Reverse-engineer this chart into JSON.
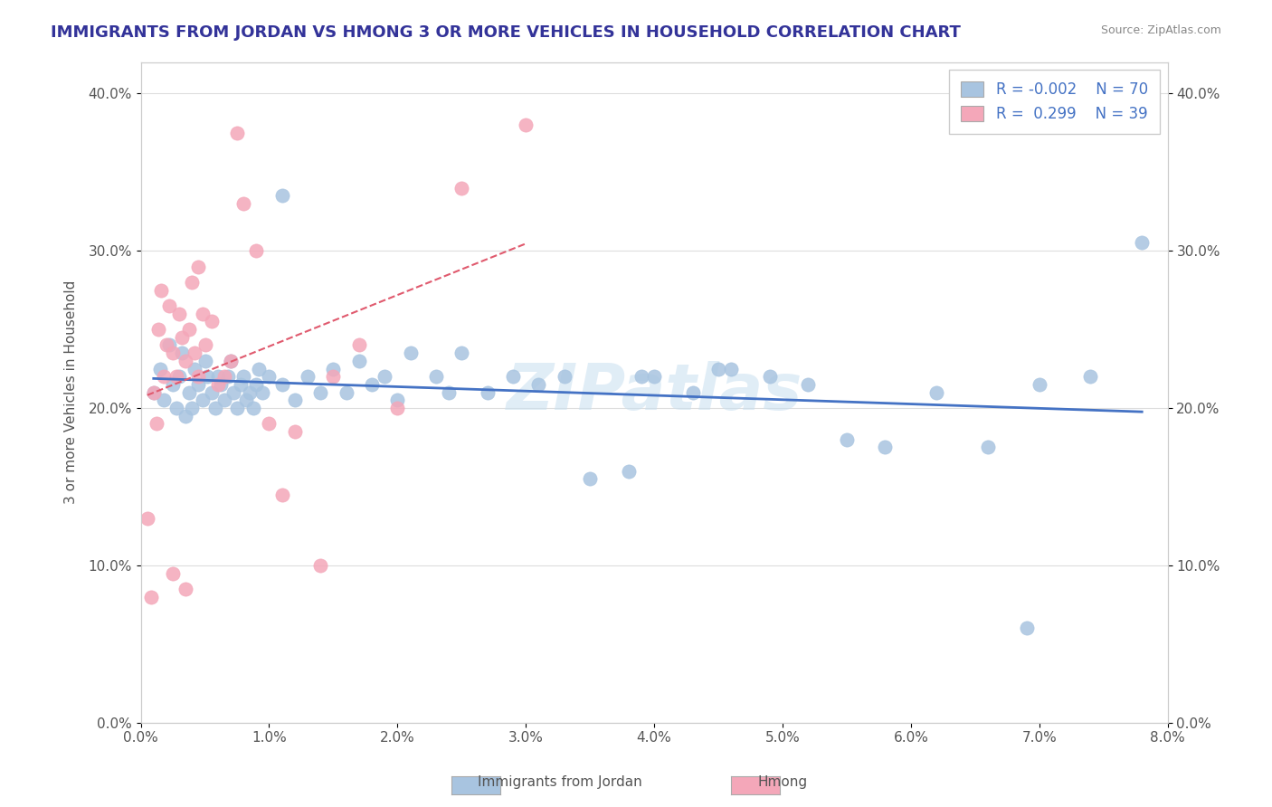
{
  "title": "IMMIGRANTS FROM JORDAN VS HMONG 3 OR MORE VEHICLES IN HOUSEHOLD CORRELATION CHART",
  "source": "Source: ZipAtlas.com",
  "ylabel": "3 or more Vehicles in Household",
  "xlim": [
    0.0,
    8.0
  ],
  "ylim": [
    0.0,
    42.0
  ],
  "jordan_color": "#a8c4e0",
  "hmong_color": "#f4a7b9",
  "jordan_line_color": "#4472c4",
  "hmong_line_color": "#e05a6e",
  "background_color": "#ffffff",
  "watermark": "ZIPatlas",
  "jordan_x": [
    0.1,
    0.15,
    0.18,
    0.22,
    0.25,
    0.28,
    0.3,
    0.32,
    0.35,
    0.38,
    0.4,
    0.42,
    0.45,
    0.48,
    0.5,
    0.52,
    0.55,
    0.58,
    0.6,
    0.62,
    0.65,
    0.68,
    0.7,
    0.72,
    0.75,
    0.78,
    0.8,
    0.82,
    0.85,
    0.88,
    0.9,
    0.92,
    0.95,
    1.0,
    1.1,
    1.2,
    1.3,
    1.4,
    1.5,
    1.6,
    1.7,
    1.8,
    1.9,
    2.0,
    2.1,
    2.3,
    2.5,
    2.7,
    2.9,
    3.1,
    3.3,
    3.5,
    3.8,
    4.0,
    4.3,
    4.6,
    4.9,
    5.2,
    5.5,
    5.8,
    6.2,
    6.6,
    7.0,
    7.4,
    7.8,
    6.9,
    4.5,
    3.9,
    2.4,
    1.1
  ],
  "jordan_y": [
    21.0,
    22.5,
    20.5,
    24.0,
    21.5,
    20.0,
    22.0,
    23.5,
    19.5,
    21.0,
    20.0,
    22.5,
    21.5,
    20.5,
    23.0,
    22.0,
    21.0,
    20.0,
    22.0,
    21.5,
    20.5,
    22.0,
    23.0,
    21.0,
    20.0,
    21.5,
    22.0,
    20.5,
    21.0,
    20.0,
    21.5,
    22.5,
    21.0,
    22.0,
    21.5,
    20.5,
    22.0,
    21.0,
    22.5,
    21.0,
    23.0,
    21.5,
    22.0,
    20.5,
    23.5,
    22.0,
    23.5,
    21.0,
    22.0,
    21.5,
    22.0,
    15.5,
    16.0,
    22.0,
    21.0,
    22.5,
    22.0,
    21.5,
    18.0,
    17.5,
    21.0,
    17.5,
    21.5,
    22.0,
    30.5,
    6.0,
    22.5,
    22.0,
    21.0,
    33.5
  ],
  "hmong_x": [
    0.05,
    0.08,
    0.1,
    0.12,
    0.14,
    0.16,
    0.18,
    0.2,
    0.22,
    0.25,
    0.28,
    0.3,
    0.32,
    0.35,
    0.38,
    0.4,
    0.42,
    0.45,
    0.48,
    0.5,
    0.55,
    0.6,
    0.65,
    0.7,
    0.75,
    0.8,
    0.9,
    1.0,
    1.1,
    1.2,
    1.4,
    1.5,
    1.7,
    2.0,
    2.5,
    3.0,
    0.25,
    0.35,
    0.45
  ],
  "hmong_y": [
    13.0,
    8.0,
    21.0,
    19.0,
    25.0,
    27.5,
    22.0,
    24.0,
    26.5,
    23.5,
    22.0,
    26.0,
    24.5,
    23.0,
    25.0,
    28.0,
    23.5,
    22.0,
    26.0,
    24.0,
    25.5,
    21.5,
    22.0,
    23.0,
    37.5,
    33.0,
    30.0,
    19.0,
    14.5,
    18.5,
    10.0,
    22.0,
    24.0,
    20.0,
    34.0,
    38.0,
    9.5,
    8.5,
    29.0
  ]
}
